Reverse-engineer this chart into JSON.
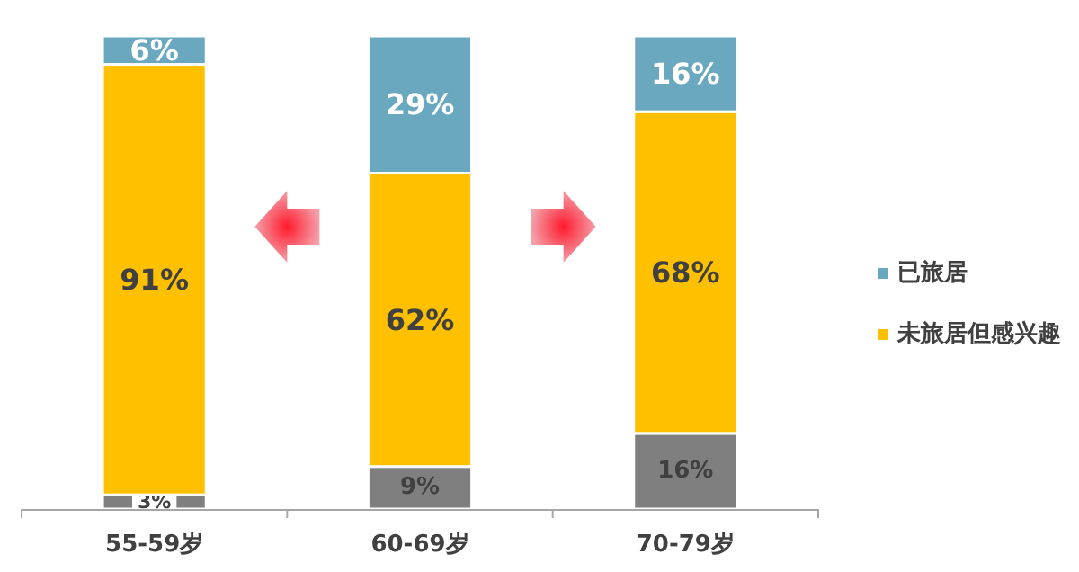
{
  "chart_data": {
    "type": "bar",
    "stacked": true,
    "categories": [
      "55-59岁",
      "60-69岁",
      "70-79岁"
    ],
    "series": [
      {
        "color": "#7f7f7f",
        "values": [
          3,
          9,
          16
        ],
        "value_labels": [
          "3%",
          "9%",
          "16%"
        ]
      },
      {
        "name": "未旅居但感兴趣",
        "color": "#ffc000",
        "values": [
          91,
          62,
          68
        ],
        "value_labels": [
          "91%",
          "62%",
          "68%"
        ]
      },
      {
        "name": "已旅居",
        "color": "#6aa8bf",
        "values": [
          6,
          29,
          16
        ],
        "value_labels": [
          "6%",
          "29%",
          "16%"
        ]
      }
    ],
    "legend": "right"
  }
}
